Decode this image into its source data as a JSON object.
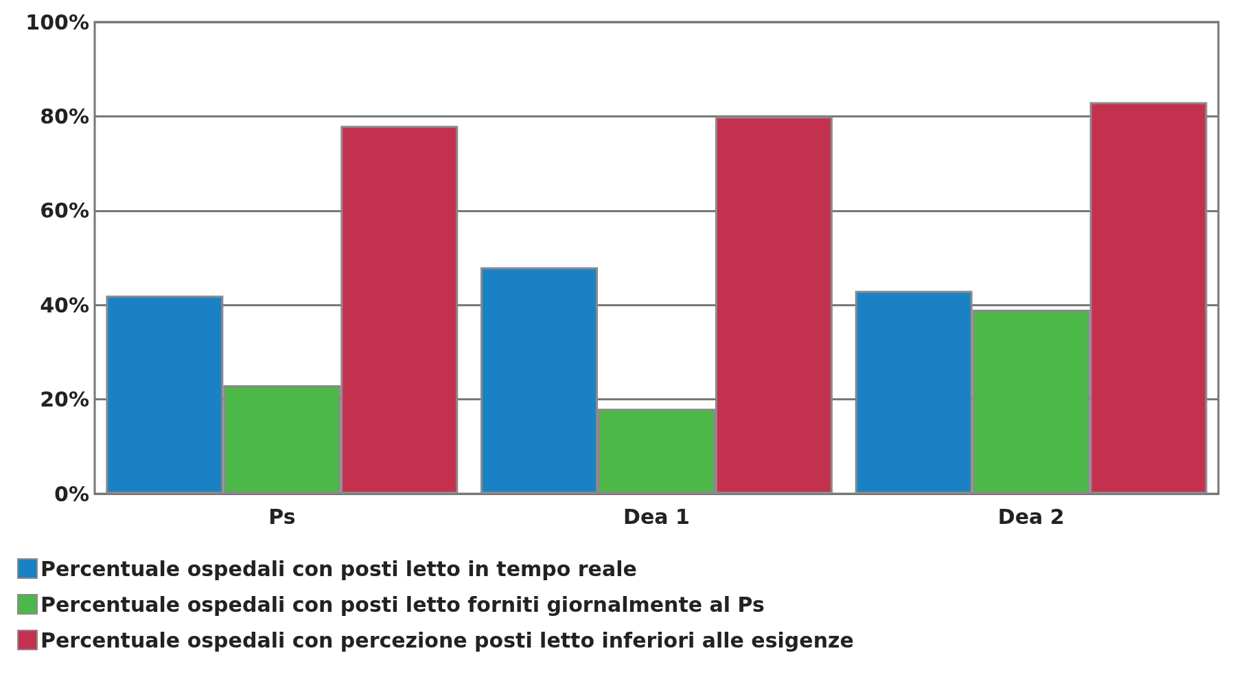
{
  "chart_data": {
    "type": "bar",
    "categories": [
      "Ps",
      "Dea 1",
      "Dea 2"
    ],
    "series": [
      {
        "name": "Percentuale ospedali con posti letto in tempo reale",
        "color": "#1a82c4",
        "values": [
          42,
          48,
          43
        ]
      },
      {
        "name": "Percentuale ospedali con posti letto forniti giornalmente al Ps",
        "color": "#4cb848",
        "values": [
          23,
          18,
          39
        ]
      },
      {
        "name": "Percentuale ospedali con percezione posti letto inferiori alle esigenze",
        "color": "#c4314f",
        "values": [
          78,
          80,
          83
        ]
      }
    ],
    "ylim": [
      0,
      100
    ],
    "yticks": [
      {
        "value": 0,
        "label": "0%"
      },
      {
        "value": 20,
        "label": "20%"
      },
      {
        "value": 40,
        "label": "40%"
      },
      {
        "value": 60,
        "label": "60%"
      },
      {
        "value": 80,
        "label": "80%"
      },
      {
        "value": 100,
        "label": "100%"
      }
    ],
    "grid": "y",
    "legend": "bottom left"
  }
}
